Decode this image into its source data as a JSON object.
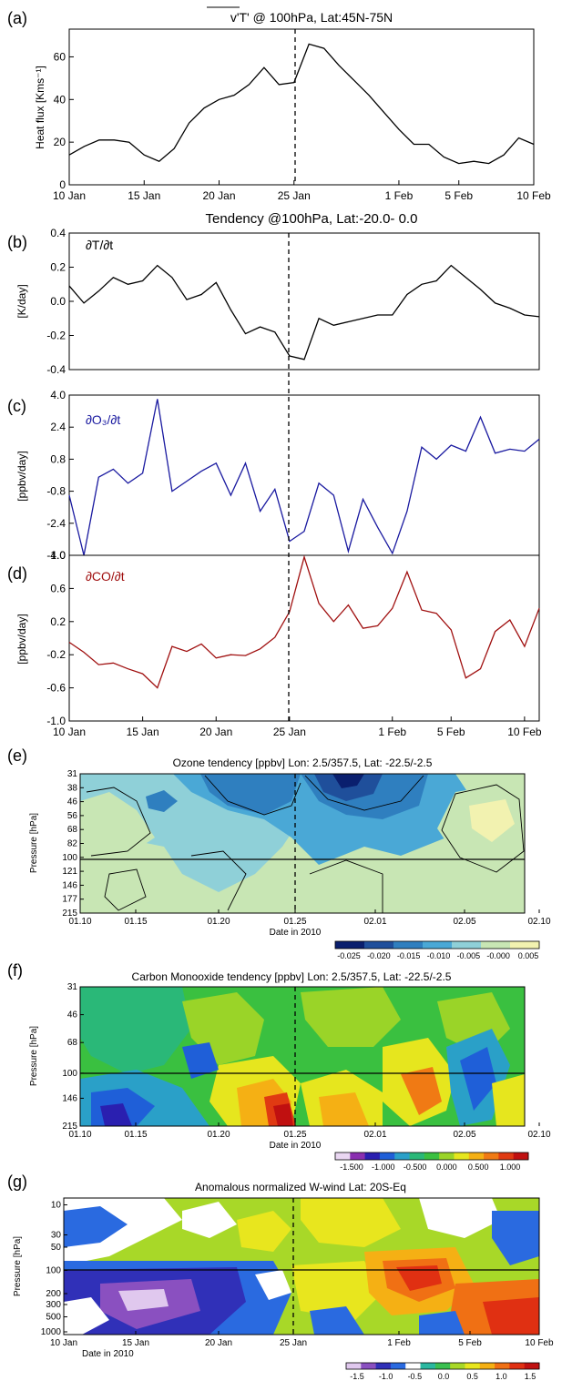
{
  "chart_data": [
    {
      "panel": "(a)",
      "type": "line",
      "title": "v'T' @ 100hPa, Lat:45N-75N",
      "ylabel": "Heat flux [Kms⁻¹]",
      "ylim": [
        0,
        73
      ],
      "yticks": [
        0,
        20,
        40,
        60
      ],
      "xlim": [
        0,
        31
      ],
      "xticks": [
        {
          "x": 0,
          "label": "10 Jan"
        },
        {
          "x": 5,
          "label": "15 Jan"
        },
        {
          "x": 10,
          "label": "20 Jan"
        },
        {
          "x": 15,
          "label": "25 Jan"
        },
        {
          "x": 22,
          "label": "1 Feb"
        },
        {
          "x": 26,
          "label": "5 Feb"
        },
        {
          "x": 31,
          "label": "10 Feb"
        }
      ],
      "marker_x": 15,
      "color": "#000000",
      "x": [
        0,
        1,
        2,
        3,
        4,
        5,
        6,
        7,
        8,
        9,
        10,
        11,
        12,
        13,
        14,
        15,
        16,
        17,
        18,
        19,
        20,
        21,
        22,
        23,
        24,
        25,
        26,
        27,
        28,
        29,
        30,
        31
      ],
      "values": [
        14,
        18,
        21,
        21,
        20,
        14,
        11,
        17,
        29,
        36,
        40,
        42,
        47,
        55,
        47,
        48,
        66,
        64,
        56,
        49,
        42,
        34,
        26,
        19,
        19,
        13,
        10,
        11,
        10,
        14,
        22,
        19
      ]
    },
    {
      "panel": "(b)",
      "type": "line",
      "title": "Tendency @100hPa, Lat:-20.0-  0.0",
      "label": "∂T/∂t",
      "ylabel": "[K/day]",
      "ylim": [
        -0.4,
        0.4
      ],
      "yticks": [
        -0.4,
        -0.2,
        0.0,
        0.2,
        0.4
      ],
      "yticklabels": [
        "-0.4",
        "-0.2",
        "0.0",
        "0.2",
        "0.4"
      ],
      "xlim": [
        0,
        32
      ],
      "marker_x": 15,
      "color": "#000000",
      "x": [
        0,
        1,
        2,
        3,
        4,
        5,
        6,
        7,
        8,
        9,
        10,
        11,
        12,
        13,
        14,
        15,
        16,
        17,
        18,
        19,
        20,
        21,
        22,
        23,
        24,
        25,
        26,
        27,
        28,
        29,
        30,
        31,
        32
      ],
      "values": [
        0.09,
        -0.01,
        0.06,
        0.14,
        0.1,
        0.12,
        0.21,
        0.14,
        0.01,
        0.04,
        0.11,
        -0.05,
        -0.19,
        -0.15,
        -0.18,
        -0.32,
        -0.34,
        -0.1,
        -0.14,
        -0.12,
        -0.1,
        -0.08,
        -0.08,
        0.04,
        0.1,
        0.12,
        0.21,
        0.14,
        0.07,
        -0.01,
        -0.04,
        -0.08,
        -0.09
      ]
    },
    {
      "panel": "(c)",
      "type": "line",
      "label": "∂O₃/∂t",
      "ylabel": "[ppbv/day]",
      "ylim": [
        -4.0,
        4.0
      ],
      "yticks": [
        -4.0,
        -2.4,
        -0.8,
        0.8,
        2.4,
        4.0
      ],
      "yticklabels": [
        "-4.0",
        "-2.4",
        "-0.8",
        "0.8",
        "2.4",
        "4.0"
      ],
      "xlim": [
        0,
        32
      ],
      "marker_x": 15,
      "color": "#1a1aa0",
      "x": [
        0,
        1,
        2,
        3,
        4,
        5,
        6,
        7,
        8,
        9,
        10,
        11,
        12,
        13,
        14,
        15,
        16,
        17,
        18,
        19,
        20,
        21,
        22,
        23,
        24,
        25,
        26,
        27,
        28,
        29,
        30,
        31,
        32
      ],
      "values": [
        -1.0,
        -4.0,
        -0.1,
        0.3,
        -0.4,
        0.1,
        3.8,
        -0.8,
        -0.3,
        0.2,
        0.6,
        -1.0,
        0.6,
        -1.8,
        -0.7,
        -3.3,
        -2.8,
        -0.4,
        -1.0,
        -3.8,
        -1.2,
        -2.6,
        -3.9,
        -1.8,
        1.4,
        0.8,
        1.5,
        1.2,
        2.9,
        1.1,
        1.3,
        1.2,
        1.8
      ]
    },
    {
      "panel": "(d)",
      "type": "line",
      "label": "∂CO/∂t",
      "ylabel": "[ppbv/day]",
      "ylim": [
        -1.0,
        1.0
      ],
      "yticks": [
        -1.0,
        -0.6,
        -0.2,
        0.2,
        0.6,
        1.0
      ],
      "yticklabels": [
        "-1.0",
        "-0.6",
        "-0.2",
        "0.2",
        "0.6",
        "1.0"
      ],
      "xlim": [
        0,
        32
      ],
      "xticks": [
        {
          "x": 0,
          "label": "10 Jan"
        },
        {
          "x": 5,
          "label": "15 Jan"
        },
        {
          "x": 10,
          "label": "20 Jan"
        },
        {
          "x": 15,
          "label": "25 Jan"
        },
        {
          "x": 22,
          "label": "1 Feb"
        },
        {
          "x": 26,
          "label": "5 Feb"
        },
        {
          "x": 31,
          "label": "10 Feb"
        }
      ],
      "marker_x": 15,
      "color": "#a01010",
      "x": [
        0,
        1,
        2,
        3,
        4,
        5,
        6,
        7,
        8,
        9,
        10,
        11,
        12,
        13,
        14,
        15,
        16,
        17,
        18,
        19,
        20,
        21,
        22,
        23,
        24,
        25,
        26,
        27,
        28,
        29,
        30,
        31,
        32
      ],
      "values": [
        -0.05,
        -0.17,
        -0.32,
        -0.3,
        -0.37,
        -0.43,
        -0.6,
        -0.1,
        -0.16,
        -0.07,
        -0.24,
        -0.2,
        -0.21,
        -0.13,
        0.01,
        0.32,
        0.98,
        0.42,
        0.2,
        0.4,
        0.12,
        0.15,
        0.36,
        0.8,
        0.34,
        0.3,
        0.1,
        -0.48,
        -0.37,
        0.08,
        0.22,
        -0.1,
        0.36
      ]
    },
    {
      "panel": "(e)",
      "type": "heatmap",
      "title": "Ozone tendency [ppbv] Lon: 2.5/357.5, Lat: -22.5/-2.5",
      "xlabel": "Date in 2010",
      "ylabel": "Pressure [hPa]",
      "xticklabels": [
        "01.10",
        "01.15",
        "01.20",
        "01.25",
        "02.01",
        "02.05",
        "02.10"
      ],
      "yticklabels": [
        "31",
        "38",
        "46",
        "56",
        "68",
        "82",
        "100",
        "121",
        "146",
        "177",
        "215"
      ],
      "colorbar_labels": [
        "-0.025",
        "-0.020",
        "-0.015",
        "-0.010",
        "-0.005",
        "-0.000",
        "0.005"
      ],
      "colorbar_colors": [
        "#0a1f6e",
        "#1f4f9b",
        "#2f7fbf",
        "#4aa8d6",
        "#8fd0d8",
        "#c8e6b4",
        "#f2f2b0"
      ]
    },
    {
      "panel": "(f)",
      "type": "heatmap",
      "title": "Carbon Monooxide tendency [ppbv] Lon: 2.5/357.5, Lat: -22.5/-2.5",
      "xlabel": "Date in 2010",
      "ylabel": "Pressure [hPa]",
      "xticklabels": [
        "01.10",
        "01.15",
        "01.20",
        "01.25",
        "02.01",
        "02.05",
        "02.10"
      ],
      "yticklabels": [
        "31",
        "46",
        "68",
        "100",
        "146",
        "215"
      ],
      "colorbar_labels": [
        "-1.500",
        "-1.000",
        "-0.500",
        "0.000",
        "0.500",
        "1.000"
      ],
      "colorbar_colors": [
        "#ead7f2",
        "#8a2fb0",
        "#2a1fb0",
        "#1f5fd8",
        "#2aa0c8",
        "#2ab878",
        "#3ac040",
        "#9ad428",
        "#e6e61e",
        "#f5b014",
        "#f07a14",
        "#e03a12",
        "#c01010"
      ]
    },
    {
      "panel": "(g)",
      "type": "heatmap",
      "title": "Anomalous normalized W-wind  Lat: 20S-Eq",
      "xlabel": "Date in 2010",
      "ylabel": "Pressure [hPa]",
      "xticklabels": [
        "10 Jan",
        "15 Jan",
        "20 Jan",
        "25 Jan",
        "1 Feb",
        "5 Feb",
        "10 Feb"
      ],
      "yticklabels": [
        "10",
        "30",
        "50",
        "100",
        "200",
        "300",
        "500",
        "1000"
      ],
      "colorbar_labels": [
        "-1.5",
        "-1.0",
        "-0.5",
        "0.0",
        "0.5",
        "1.0",
        "1.5"
      ],
      "colorbar_colors": [
        "#e0c8ee",
        "#8a50c0",
        "#3030b8",
        "#2a6ae0",
        "#ffffff",
        "#2ab8a0",
        "#3ac050",
        "#a8d828",
        "#e8e61e",
        "#f5b014",
        "#f07014",
        "#e03012",
        "#c01010"
      ]
    }
  ]
}
